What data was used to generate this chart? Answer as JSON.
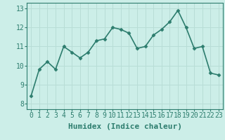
{
  "x": [
    0,
    1,
    2,
    3,
    4,
    5,
    6,
    7,
    8,
    9,
    10,
    11,
    12,
    13,
    14,
    15,
    16,
    17,
    18,
    19,
    20,
    21,
    22,
    23
  ],
  "y": [
    8.4,
    9.8,
    10.2,
    9.8,
    11.0,
    10.7,
    10.4,
    10.7,
    11.3,
    11.4,
    12.0,
    11.9,
    11.7,
    10.9,
    11.0,
    11.6,
    11.9,
    12.3,
    12.9,
    12.0,
    10.9,
    11.0,
    9.6,
    9.5
  ],
  "xlabel": "Humidex (Indice chaleur)",
  "ylim": [
    7.7,
    13.3
  ],
  "xlim": [
    -0.5,
    23.5
  ],
  "yticks": [
    8,
    9,
    10,
    11,
    12,
    13
  ],
  "xticks": [
    0,
    1,
    2,
    3,
    4,
    5,
    6,
    7,
    8,
    9,
    10,
    11,
    12,
    13,
    14,
    15,
    16,
    17,
    18,
    19,
    20,
    21,
    22,
    23
  ],
  "line_color": "#2d7d6e",
  "marker": "D",
  "marker_size": 2.5,
  "bg_color": "#cceee8",
  "grid_color": "#b8ddd6",
  "axes_bg": "#cceee8",
  "fig_bg": "#cceee8",
  "xlabel_fontsize": 8,
  "tick_fontsize": 7,
  "line_width": 1.2,
  "spine_color": "#2d7d6e"
}
